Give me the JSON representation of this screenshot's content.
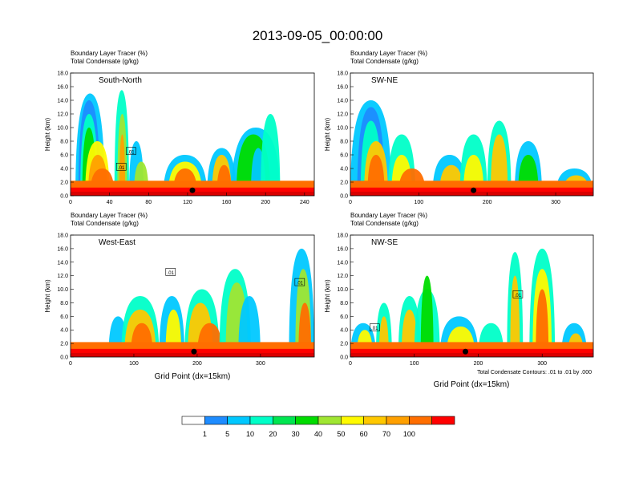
{
  "title": "2013-09-05_00:00:00",
  "colors": {
    "levels": [
      "#ffffff",
      "#1e8cff",
      "#00c8ff",
      "#00ffc8",
      "#00e650",
      "#00dc00",
      "#a0e632",
      "#fffa00",
      "#ffc800",
      "#ffa000",
      "#ff6e00",
      "#ff0000"
    ]
  },
  "colorbar": {
    "labels": [
      "1",
      "5",
      "10",
      "20",
      "30",
      "40",
      "50",
      "60",
      "70",
      "100"
    ]
  },
  "contour_note": "Total Condensate Contours: .01 to .01 by .000",
  "chart_data": [
    {
      "type": "heatmap",
      "name": "South-North",
      "title_lines": [
        "Boundary Layer Tracer   (%)",
        "Total Condensate   (g/kg)"
      ],
      "ylabel": "Height (km)",
      "xlabel": "",
      "ylim": [
        0,
        18
      ],
      "yticks": [
        "0.0",
        "2.0",
        "4.0",
        "6.0",
        "8.0",
        "10.0",
        "12.0",
        "14.0",
        "16.0",
        "18.0"
      ],
      "xlim": [
        0,
        250
      ],
      "xticks": [
        0,
        40,
        80,
        120,
        160,
        200,
        240
      ],
      "marker_x": 125,
      "contour_labels": [
        {
          "text": ".01",
          "x": 62,
          "y": 6.5
        },
        {
          "text": ".01",
          "x": 52,
          "y": 4.2
        }
      ]
    },
    {
      "type": "heatmap",
      "name": "SW-NE",
      "title_lines": [
        "Boundary Layer Tracer   (%)",
        "Total Condensate   (g/kg)"
      ],
      "ylabel": "Height (km)",
      "xlabel": "",
      "ylim": [
        0,
        18
      ],
      "yticks": [
        "0.0",
        "2.0",
        "4.0",
        "6.0",
        "8.0",
        "10.0",
        "12.0",
        "14.0",
        "16.0",
        "18.0"
      ],
      "xlim": [
        0,
        355
      ],
      "xticks": [
        0,
        100,
        200,
        300
      ],
      "marker_x": 180,
      "contour_labels": []
    },
    {
      "type": "heatmap",
      "name": "West-East",
      "title_lines": [
        "Boundary Layer Tracer   (%)",
        "Total Condensate   (g/kg)"
      ],
      "ylabel": "Height (km)",
      "xlabel": "Grid Point (dx=15km)",
      "ylim": [
        0,
        18
      ],
      "yticks": [
        "0.0",
        "2.0",
        "4.0",
        "6.0",
        "8.0",
        "10.0",
        "12.0",
        "14.0",
        "16.0",
        "18.0"
      ],
      "xlim": [
        0,
        385
      ],
      "xticks": [
        0,
        100,
        200,
        300
      ],
      "marker_x": 195,
      "contour_labels": [
        {
          "text": ".01",
          "x": 158,
          "y": 12.5
        },
        {
          "text": ".01",
          "x": 362,
          "y": 11
        }
      ]
    },
    {
      "type": "heatmap",
      "name": "NW-SE",
      "title_lines": [
        "Boundary Layer Tracer   (%)",
        "Total Condensate   (g/kg)"
      ],
      "ylabel": "Height (km)",
      "xlabel": "Grid Point (dx=15km)",
      "ylim": [
        0,
        18
      ],
      "yticks": [
        "0.0",
        "2.0",
        "4.0",
        "6.0",
        "8.0",
        "10.0",
        "12.0",
        "14.0",
        "16.0",
        "18.0"
      ],
      "xlim": [
        0,
        380
      ],
      "xticks": [
        0,
        100,
        200,
        300
      ],
      "marker_x": 180,
      "contour_labels": [
        {
          "text": ".01",
          "x": 262,
          "y": 9.2
        },
        {
          "text": ".01",
          "x": 38,
          "y": 4.3
        }
      ]
    }
  ]
}
